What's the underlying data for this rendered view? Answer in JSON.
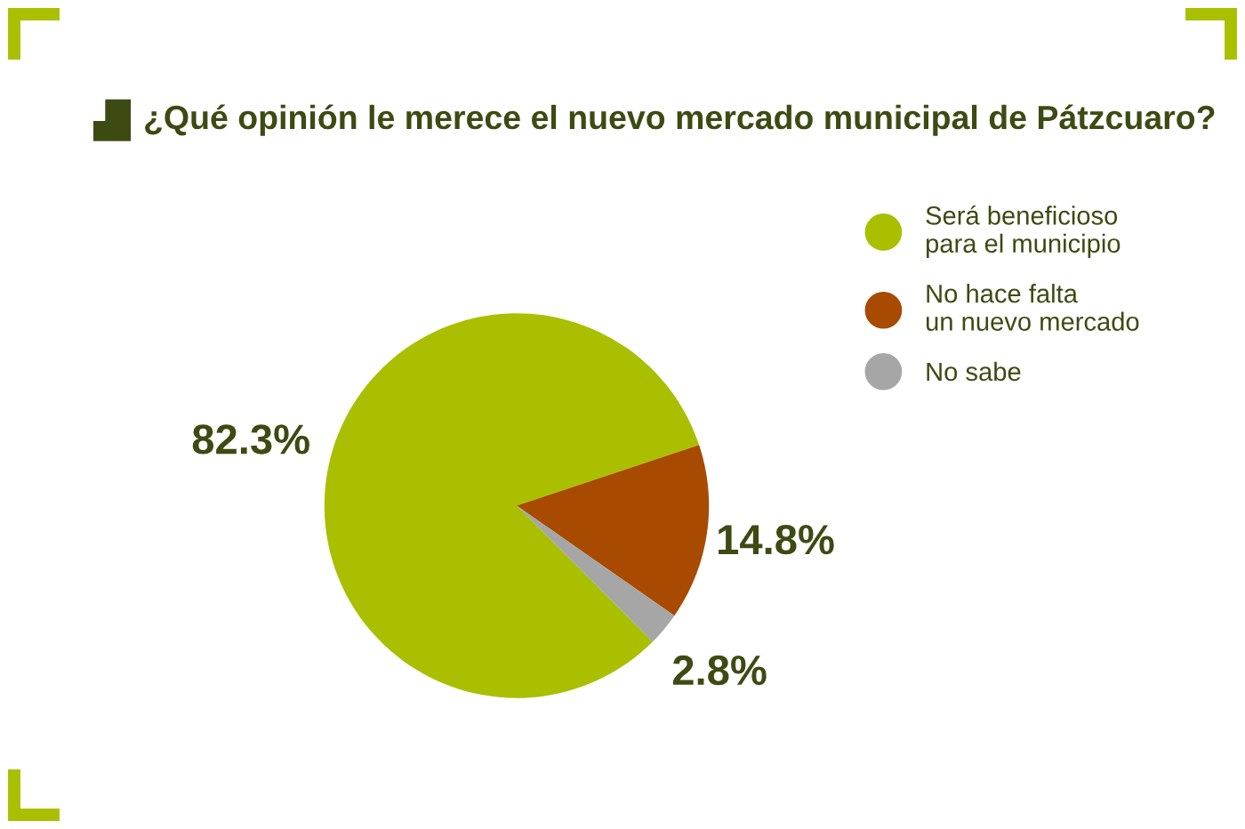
{
  "chart_data": {
    "type": "pie",
    "title": "¿Qué opinión le merece el nuevo mercado municipal de Pátzcuaro?",
    "categories": [
      "Será beneficioso\npara el municipio",
      "No hace falta\nun nuevo mercado",
      "No sabe"
    ],
    "values": [
      82.3,
      14.8,
      2.8
    ],
    "colors": [
      "#a9bf00",
      "#a84b00",
      "#a6a6a6"
    ],
    "value_labels": [
      "82.3%",
      "14.8%",
      "2.8%"
    ],
    "legend": "top right"
  }
}
